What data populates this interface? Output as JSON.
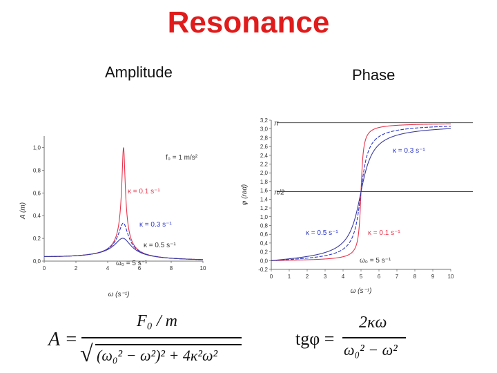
{
  "title": "Resonance",
  "headers": {
    "amplitude": "Amplitude",
    "phase": "Phase"
  },
  "colors": {
    "title": "#e01b1b",
    "k01": "#e8334a",
    "k03": "#2a35c9",
    "k05": "#3a3aa0"
  },
  "chart_data": [
    {
      "type": "line",
      "xlabel": "ω (s⁻¹)",
      "ylabel": "A (m)",
      "xlim": [
        0,
        10
      ],
      "ylim": [
        0,
        1.1
      ],
      "xticks": [
        "0",
        "2",
        "4",
        "6",
        "8",
        "10"
      ],
      "yticks": [
        "0,0",
        "0,2",
        "0,4",
        "0,6",
        "0,8",
        "1,0"
      ],
      "grid": false,
      "params": {
        "F0_over_m": 1,
        "omega0": 5
      },
      "series": [
        {
          "name": "κ = 0.1 s⁻¹",
          "kappa": 0.1,
          "color": "#e8334a"
        },
        {
          "name": "κ = 0.3 s⁻¹",
          "kappa": 0.3,
          "color": "#2a35c9"
        },
        {
          "name": "κ = 0.5 s⁻¹",
          "kappa": 0.5,
          "color": "#3a3aa0"
        }
      ],
      "annotations": [
        "f₀ = 1 m/s²",
        "κ = 0.1 s⁻¹",
        "κ = 0.3 s⁻¹",
        "κ = 0.5 s⁻¹",
        "ω₀ = 5 s⁻¹"
      ]
    },
    {
      "type": "line",
      "xlabel": "ω (s⁻¹)",
      "ylabel": "φ (rad)",
      "xlim": [
        0,
        10
      ],
      "ylim": [
        -0.2,
        3.2
      ],
      "xticks": [
        "0",
        "1",
        "2",
        "3",
        "4",
        "5",
        "6",
        "7",
        "8",
        "9",
        "10"
      ],
      "yticks": [
        "-0,2",
        "0,0",
        "0,2",
        "0,4",
        "0,6",
        "0,8",
        "1,0",
        "1,2",
        "1,4",
        "1,6",
        "1,8",
        "2,0",
        "2,2",
        "2,4",
        "2,6",
        "2,8",
        "3,0",
        "3,2"
      ],
      "reference_lines": [
        {
          "label": "π",
          "value": 3.1416
        },
        {
          "label": "π/2",
          "value": 1.5708
        }
      ],
      "grid": false,
      "params": {
        "omega0": 5
      },
      "series": [
        {
          "name": "κ = 0.1 s⁻¹",
          "kappa": 0.1,
          "color": "#e8334a"
        },
        {
          "name": "κ = 0.3 s⁻¹",
          "kappa": 0.3,
          "color": "#2a35c9"
        },
        {
          "name": "κ = 0.5 s⁻¹",
          "kappa": 0.5,
          "color": "#3a3aa0"
        }
      ],
      "annotations": [
        "κ = 0.3 s⁻¹",
        "κ = 0.5 s⁻¹",
        "κ = 0.1 s⁻¹",
        "ω₀ = 5 s⁻¹"
      ]
    }
  ],
  "formulas": {
    "amp_lhs": "A =",
    "amp_num": "F₀ / m",
    "amp_den": "(ω₀² − ω²)² + 4κ²ω²",
    "phase_lhs": "tgφ =",
    "phase_num": "2κω",
    "phase_den": "ω₀² − ω²"
  }
}
